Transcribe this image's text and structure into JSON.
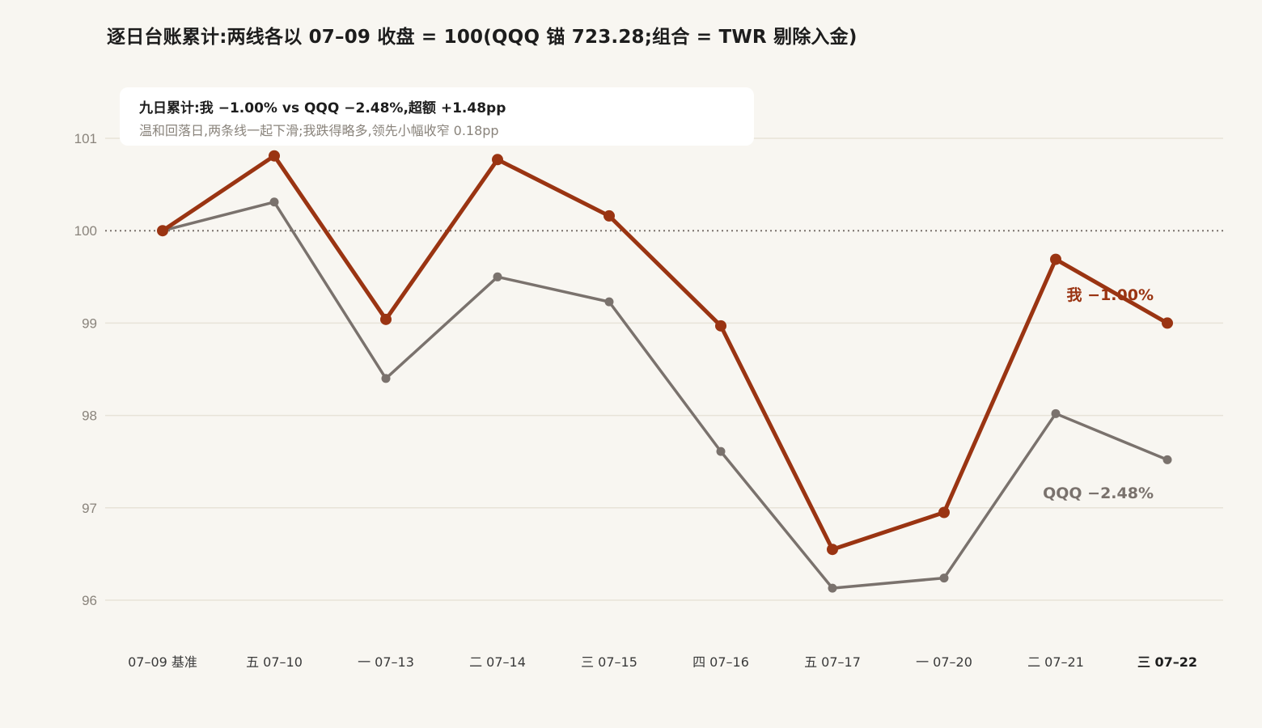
{
  "chart_data": {
    "type": "line",
    "title": "逐日台账累计:两线各以 07–09 收盘 = 100(QQQ 锚 723.28;组合 = TWR 剔除入金)",
    "categories": [
      "07–09 基准",
      "五 07–10",
      "一 07–13",
      "二 07–14",
      "三 07–15",
      "四 07–16",
      "五 07–17",
      "一 07–20",
      "二 07–21",
      "三 07–22"
    ],
    "series": [
      {
        "name": "我",
        "end_label": "我 −1.00%",
        "color": "#9a3412",
        "values": [
          100.0,
          100.81,
          99.04,
          100.77,
          100.16,
          98.97,
          96.55,
          96.95,
          99.69,
          99.0
        ]
      },
      {
        "name": "QQQ",
        "end_label": "QQQ −2.48%",
        "color": "#7a726d",
        "values": [
          100.0,
          100.31,
          98.4,
          99.5,
          99.23,
          97.61,
          96.13,
          96.24,
          98.02,
          97.52
        ]
      }
    ],
    "ylim": [
      95.8,
      101.2
    ],
    "yticks": [
      96,
      97,
      98,
      99,
      100,
      101
    ],
    "reference_line": 100,
    "grid": true,
    "annotation": {
      "title": "九日累计:我 −1.00% vs QQQ −2.48%,超额 +1.48pp",
      "subtitle": "温和回落日,两条线一起下滑;我跌得略多,领先小幅收窄 0.18pp"
    },
    "colors": {
      "background": "#f8f6f1",
      "grid": "#e7e3d8",
      "reference": "#7a726d"
    }
  }
}
